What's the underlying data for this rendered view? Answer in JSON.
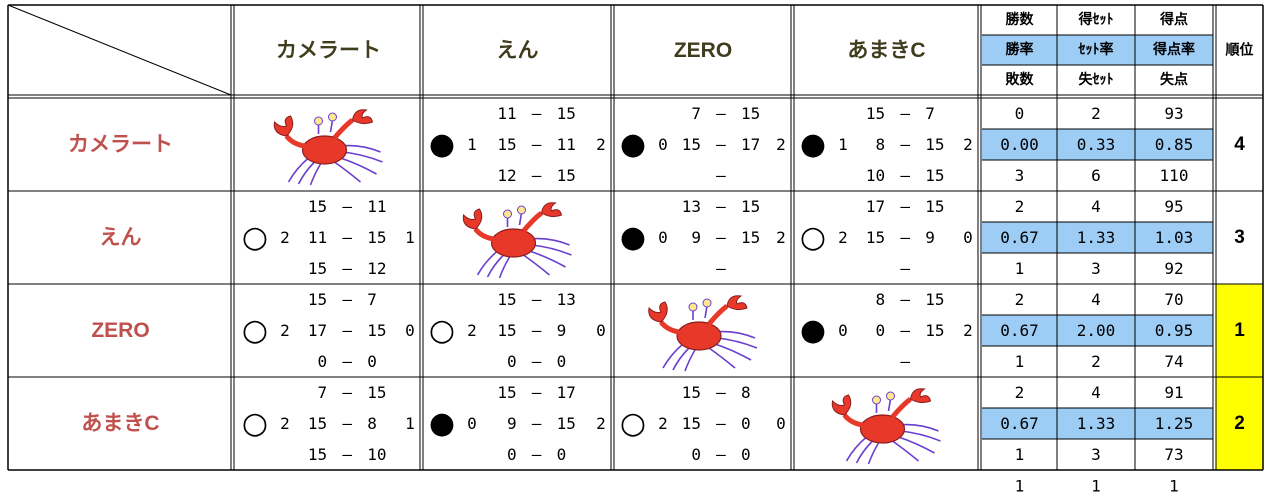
{
  "dash": "—",
  "teams": [
    "カメラート",
    "えん",
    "ZERO",
    "あまきC"
  ],
  "stat_headers": [
    [
      "勝数",
      "得ｾｯﾄ",
      "得点"
    ],
    [
      "勝率",
      "ｾｯﾄ率",
      "得点率"
    ],
    [
      "敗数",
      "失ｾｯﾄ",
      "失点"
    ]
  ],
  "rank_header": "順位",
  "rows": [
    {
      "matches": [
        null,
        {
          "mark": "●",
          "won": "1",
          "lost": "2",
          "sets": [
            [
              "11",
              "15"
            ],
            [
              "15",
              "11"
            ],
            [
              "12",
              "15"
            ]
          ]
        },
        {
          "mark": "●",
          "won": "0",
          "lost": "2",
          "sets": [
            [
              "7",
              "15"
            ],
            [
              "15",
              "17"
            ]
          ]
        },
        {
          "mark": "●",
          "won": "1",
          "lost": "2",
          "sets": [
            [
              "15",
              "7"
            ],
            [
              "8",
              "15"
            ],
            [
              "10",
              "15"
            ]
          ]
        }
      ],
      "stats": [
        [
          "0",
          "2",
          "93"
        ],
        [
          "0.00",
          "0.33",
          "0.85"
        ],
        [
          "3",
          "6",
          "110"
        ]
      ],
      "rank": "4"
    },
    {
      "matches": [
        {
          "mark": "○",
          "won": "2",
          "lost": "1",
          "sets": [
            [
              "15",
              "11"
            ],
            [
              "11",
              "15"
            ],
            [
              "15",
              "12"
            ]
          ]
        },
        null,
        {
          "mark": "●",
          "won": "0",
          "lost": "2",
          "sets": [
            [
              "13",
              "15"
            ],
            [
              "9",
              "15"
            ]
          ]
        },
        {
          "mark": "○",
          "won": "2",
          "lost": "0",
          "sets": [
            [
              "17",
              "15"
            ],
            [
              "15",
              "9"
            ]
          ]
        }
      ],
      "stats": [
        [
          "2",
          "4",
          "95"
        ],
        [
          "0.67",
          "1.33",
          "1.03"
        ],
        [
          "1",
          "3",
          "92"
        ]
      ],
      "rank": "3"
    },
    {
      "matches": [
        {
          "mark": "○",
          "won": "2",
          "lost": "0",
          "sets": [
            [
              "15",
              "7"
            ],
            [
              "17",
              "15"
            ],
            [
              "0",
              "0"
            ]
          ]
        },
        {
          "mark": "○",
          "won": "2",
          "lost": "0",
          "sets": [
            [
              "15",
              "13"
            ],
            [
              "15",
              "9"
            ],
            [
              "0",
              "0"
            ]
          ]
        },
        null,
        {
          "mark": "●",
          "won": "0",
          "lost": "2",
          "sets": [
            [
              "8",
              "15"
            ],
            [
              "0",
              "15"
            ]
          ]
        }
      ],
      "stats": [
        [
          "2",
          "4",
          "70"
        ],
        [
          "0.67",
          "2.00",
          "0.95"
        ],
        [
          "1",
          "2",
          "74"
        ]
      ],
      "rank": "1"
    },
    {
      "matches": [
        {
          "mark": "○",
          "won": "2",
          "lost": "1",
          "sets": [
            [
              "7",
              "15"
            ],
            [
              "15",
              "8"
            ],
            [
              "15",
              "10"
            ]
          ]
        },
        {
          "mark": "●",
          "won": "0",
          "lost": "2",
          "sets": [
            [
              "15",
              "17"
            ],
            [
              "9",
              "15"
            ],
            [
              "0",
              "0"
            ]
          ]
        },
        {
          "mark": "○",
          "won": "2",
          "lost": "0",
          "sets": [
            [
              "15",
              "8"
            ],
            [
              "15",
              "0"
            ],
            [
              "0",
              "0"
            ]
          ]
        },
        null
      ],
      "stats": [
        [
          "2",
          "4",
          "91"
        ],
        [
          "0.67",
          "1.33",
          "1.25"
        ],
        [
          "1",
          "3",
          "73"
        ]
      ],
      "rank": "2"
    }
  ],
  "footer": [
    "1",
    "1",
    "1"
  ]
}
